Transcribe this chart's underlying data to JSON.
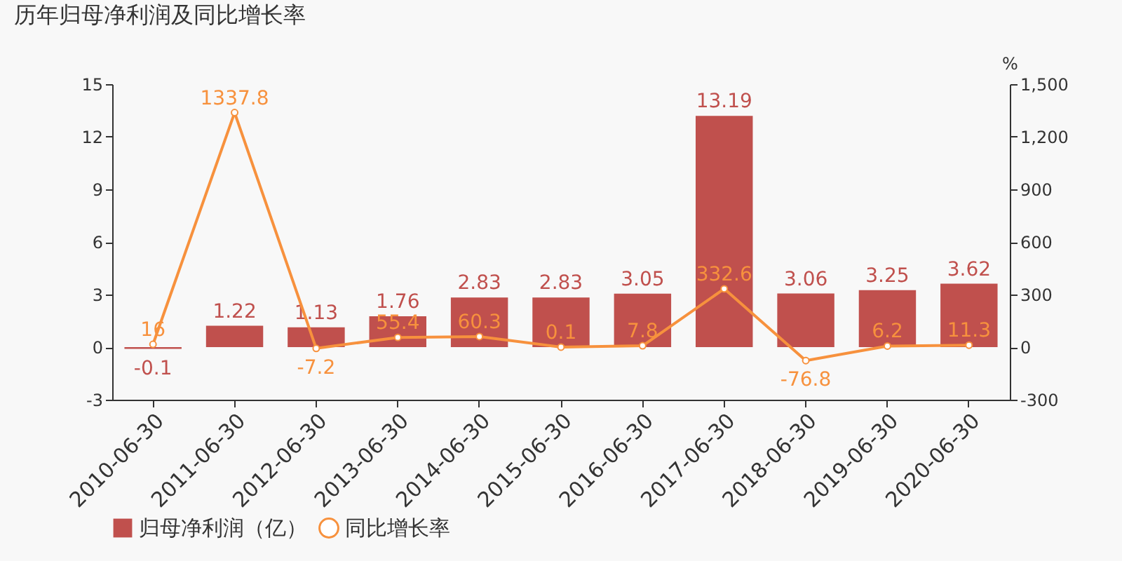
{
  "chart_data": {
    "type": "bar",
    "title": "历年归母净利润及同比增长率",
    "y2label": "%",
    "categories": [
      "2010-06-30",
      "2011-06-30",
      "2012-06-30",
      "2013-06-30",
      "2014-06-30",
      "2015-06-30",
      "2016-06-30",
      "2017-06-30",
      "2018-06-30",
      "2019-06-30",
      "2020-06-30"
    ],
    "series": [
      {
        "name": "归母净利润（亿）",
        "color": "#c0504d",
        "values": [
          -0.1,
          1.22,
          1.13,
          1.76,
          2.83,
          2.83,
          3.05,
          13.19,
          3.06,
          3.25,
          3.62
        ]
      },
      {
        "name": "同比增长率",
        "type": "line",
        "axis": "y2",
        "color": "#f7913d",
        "marker": "circle",
        "values": [
          16,
          1337.8,
          -7.2,
          55.4,
          60.3,
          0.1,
          7.8,
          332.6,
          -76.8,
          6.2,
          11.3
        ]
      }
    ],
    "ylim": [
      -3,
      15
    ],
    "yticks": [
      -3,
      0,
      3,
      6,
      9,
      12,
      15
    ],
    "y2lim": [
      -300,
      1500
    ],
    "y2ticks": [
      {
        "value": -300,
        "label": "-300"
      },
      {
        "value": 0,
        "label": "0"
      },
      {
        "value": 300,
        "label": "300"
      },
      {
        "value": 600,
        "label": "600"
      },
      {
        "value": 900,
        "label": "900"
      },
      {
        "value": 1200,
        "label": "1,200"
      },
      {
        "value": 1500,
        "label": "1,500"
      }
    ],
    "grid": false,
    "legend": "bottom",
    "data_labels": true
  }
}
